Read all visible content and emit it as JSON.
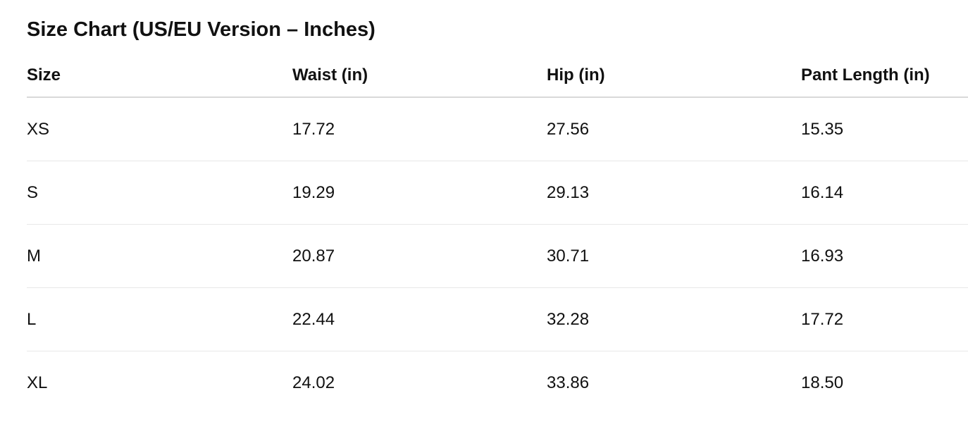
{
  "title": "Size Chart (US/EU Version – Inches)",
  "table": {
    "headers": [
      "Size",
      "Waist (in)",
      "Hip (in)",
      "Pant Length (in)"
    ],
    "rows": [
      [
        "XS",
        "17.72",
        "27.56",
        "15.35"
      ],
      [
        "S",
        "19.29",
        "29.13",
        "16.14"
      ],
      [
        "M",
        "20.87",
        "30.71",
        "16.93"
      ],
      [
        "L",
        "22.44",
        "32.28",
        "17.72"
      ],
      [
        "XL",
        "24.02",
        "33.86",
        "18.50"
      ]
    ]
  }
}
